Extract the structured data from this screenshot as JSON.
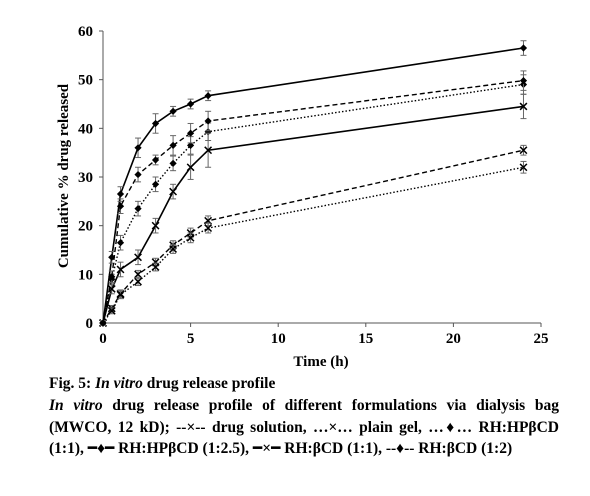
{
  "chart_data": {
    "type": "line",
    "xlabel": "Time (h)",
    "ylabel": "Cumulative % drug released",
    "xlim": [
      0,
      25
    ],
    "ylim": [
      0,
      60
    ],
    "xticks": [
      0,
      5,
      10,
      15,
      20,
      25
    ],
    "yticks": [
      0,
      10,
      20,
      30,
      40,
      50,
      60
    ],
    "grid": false,
    "legend": "none",
    "series": [
      {
        "style": "dashed",
        "marker": "x",
        "x": [
          0,
          0.5,
          1,
          2,
          3,
          4,
          5,
          6,
          24
        ],
        "y": [
          0,
          3,
          6,
          10,
          12.5,
          16,
          18.5,
          21,
          35.5
        ],
        "err": [
          0.5,
          0.6,
          0.8,
          0.8,
          0.8,
          0.9,
          1.0,
          1.0,
          1.0
        ]
      },
      {
        "style": "dotted",
        "marker": "x",
        "x": [
          0,
          0.5,
          1,
          2,
          3,
          4,
          5,
          6,
          24
        ],
        "y": [
          0,
          2.5,
          5.8,
          8.5,
          11.5,
          15.2,
          17.5,
          19.5,
          32
        ],
        "err": [
          0.5,
          0.6,
          0.8,
          0.8,
          0.8,
          0.9,
          1.0,
          1.0,
          1.2
        ]
      },
      {
        "style": "dotted",
        "marker": "diamond",
        "x": [
          0,
          0.5,
          1,
          2,
          3,
          4,
          5,
          6,
          24
        ],
        "y": [
          0,
          9,
          16.5,
          23.5,
          28.5,
          32.8,
          36.5,
          39.3,
          49
        ],
        "err": [
          0.5,
          1.0,
          1.5,
          1.5,
          1.5,
          1.5,
          1.8,
          1.8,
          2.0
        ]
      },
      {
        "style": "solid",
        "marker": "diamond",
        "x": [
          0,
          0.5,
          1,
          2,
          3,
          4,
          5,
          6,
          24
        ],
        "y": [
          0,
          13.5,
          26.5,
          36,
          41,
          43.5,
          45,
          46.7,
          56.5
        ],
        "err": [
          0.5,
          1.2,
          1.5,
          2.0,
          2.0,
          1.0,
          1.0,
          1.0,
          1.5
        ]
      },
      {
        "style": "solid",
        "marker": "x",
        "x": [
          0,
          0.5,
          1,
          2,
          3,
          4,
          5,
          6,
          24
        ],
        "y": [
          0,
          7,
          11,
          13.5,
          20,
          27,
          32,
          35.5,
          44.5
        ],
        "err": [
          0.5,
          1.0,
          1.5,
          1.5,
          1.5,
          1.5,
          2.5,
          3.5,
          2.5
        ]
      },
      {
        "style": "dashed",
        "marker": "diamond",
        "x": [
          0,
          0.5,
          1,
          2,
          3,
          4,
          5,
          6,
          24
        ],
        "y": [
          0,
          9.5,
          24,
          30.5,
          33.5,
          36.5,
          39,
          41.5,
          49.8
        ],
        "err": [
          0.5,
          1.2,
          1.5,
          1.5,
          1.0,
          2.0,
          2.0,
          2.0,
          2.0
        ]
      }
    ]
  },
  "caption": {
    "title_prefix": "Fig. 5: ",
    "title_italic": "In vitro",
    "title_rest": " drug release profile",
    "desc_italic": "In vitro",
    "desc_rest": " drug release profile of different formulations via dialysis bag (MWCO, 12 kD); --×-- drug solution, …×… plain gel, …♦… RH:HPβCD (1:1), ━♦━ RH:HPβCD (1:2.5), ━×━ RH:βCD (1:1), --♦-- RH:βCD (1:2)"
  }
}
